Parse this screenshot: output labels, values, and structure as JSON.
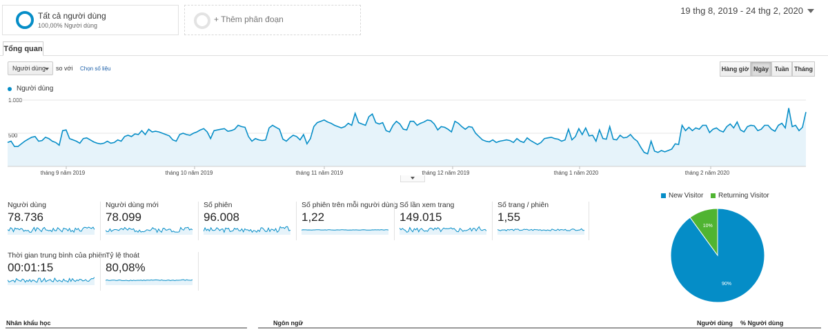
{
  "segments": {
    "primary": {
      "title": "Tất cả người dùng",
      "subtitle": "100,00% Người dùng"
    },
    "add_label": "+ Thêm phân đoạn"
  },
  "date_range": "19 thg 8, 2019 - 24 thg 2, 2020",
  "tabs": {
    "overview": "Tổng quan"
  },
  "controls": {
    "metric": "Người dùng",
    "vs": "so với",
    "pick_metric": "Chọn số liệu",
    "granularity": [
      "Hàng giờ",
      "Ngày",
      "Tuần",
      "Tháng"
    ],
    "active_granularity": "Ngày"
  },
  "colors": {
    "primary": "#058dc7",
    "returning": "#50b432",
    "fill": "#e6f3fa"
  },
  "chart_data": {
    "type": "area",
    "series": [
      {
        "name": "Người dùng",
        "values": [
          360,
          380,
          300,
          300,
          340,
          380,
          410,
          440,
          450,
          380,
          390,
          440,
          420,
          380,
          360,
          320,
          540,
          550,
          420,
          400,
          380,
          350,
          420,
          430,
          400,
          370,
          350,
          340,
          350,
          380,
          350,
          360,
          400,
          380,
          450,
          470,
          450,
          490,
          480,
          540,
          480,
          560,
          520,
          530,
          520,
          500,
          480,
          460,
          400,
          380,
          480,
          500,
          480,
          470,
          500,
          520,
          550,
          570,
          520,
          420,
          540,
          550,
          560,
          570,
          530,
          540,
          560,
          620,
          600,
          590,
          450,
          380,
          420,
          400,
          390,
          400,
          580,
          620,
          590,
          560,
          410,
          380,
          430,
          470,
          450,
          400,
          480,
          340,
          420,
          600,
          660,
          680,
          700,
          670,
          650,
          620,
          600,
          580,
          600,
          650,
          620,
          800,
          660,
          640,
          620,
          750,
          790,
          660,
          640,
          660,
          540,
          520,
          620,
          680,
          640,
          560,
          550,
          680,
          680,
          620,
          650,
          670,
          700,
          690,
          640,
          550,
          600,
          590,
          560,
          520,
          680,
          650,
          600,
          560,
          600,
          590,
          500,
          450,
          400,
          380,
          370,
          400,
          360,
          380,
          390,
          400,
          390,
          360,
          420,
          380,
          360,
          430,
          390,
          360,
          330,
          360,
          420,
          430,
          440,
          420,
          410,
          380,
          400,
          560,
          400,
          450,
          570,
          480,
          580,
          460,
          470,
          380,
          550,
          420,
          410,
          600,
          410,
          400,
          470,
          430,
          440,
          480,
          420,
          380,
          290,
          210,
          190,
          380,
          230,
          210,
          240,
          220,
          240,
          260,
          340,
          330,
          620,
          540,
          590,
          540,
          580,
          560,
          620,
          620,
          510,
          560,
          580,
          540,
          520,
          600,
          640,
          580,
          670,
          550,
          520,
          600,
          620,
          610,
          540,
          560,
          620,
          620,
          560,
          530,
          620,
          650,
          580,
          880,
          600,
          620,
          540,
          590,
          820
        ]
      }
    ],
    "ylim": [
      0,
      1000
    ],
    "y_ticks": [
      "1.000",
      "500"
    ],
    "x_labels": [
      "tháng 9 năm 2019",
      "tháng 10 năm 2019",
      "tháng 11 năm 2019",
      "tháng 12 năm 2019",
      "tháng 1 năm 2020",
      "tháng 2 năm 2020"
    ]
  },
  "metrics": [
    {
      "label": "Người dùng",
      "value": "78.736"
    },
    {
      "label": "Người dùng mới",
      "value": "78.099"
    },
    {
      "label": "Số phiên",
      "value": "96.008"
    },
    {
      "label": "Số phiên trên mỗi người dùng",
      "value": "1,22"
    },
    {
      "label": "Số lần xem trang",
      "value": "149.015"
    },
    {
      "label": "Số trang / phiên",
      "value": "1,55"
    },
    {
      "label": "Thời gian trung bình của phiên",
      "value": "00:01:15"
    },
    {
      "label": "Tỷ lệ thoát",
      "value": "80,08%"
    }
  ],
  "pie": {
    "type": "pie",
    "slices": [
      {
        "name": "New Visitor",
        "value": 90,
        "label": "90%",
        "color": "#058dc7"
      },
      {
        "name": "Returning Visitor",
        "value": 10,
        "label": "10%",
        "color": "#50b432"
      }
    ]
  },
  "bottom": {
    "demographics": "Nhân khẩu học",
    "language": "Ngôn ngữ",
    "users_col": "Người dùng",
    "pct_users_col": "% Người dùng"
  }
}
